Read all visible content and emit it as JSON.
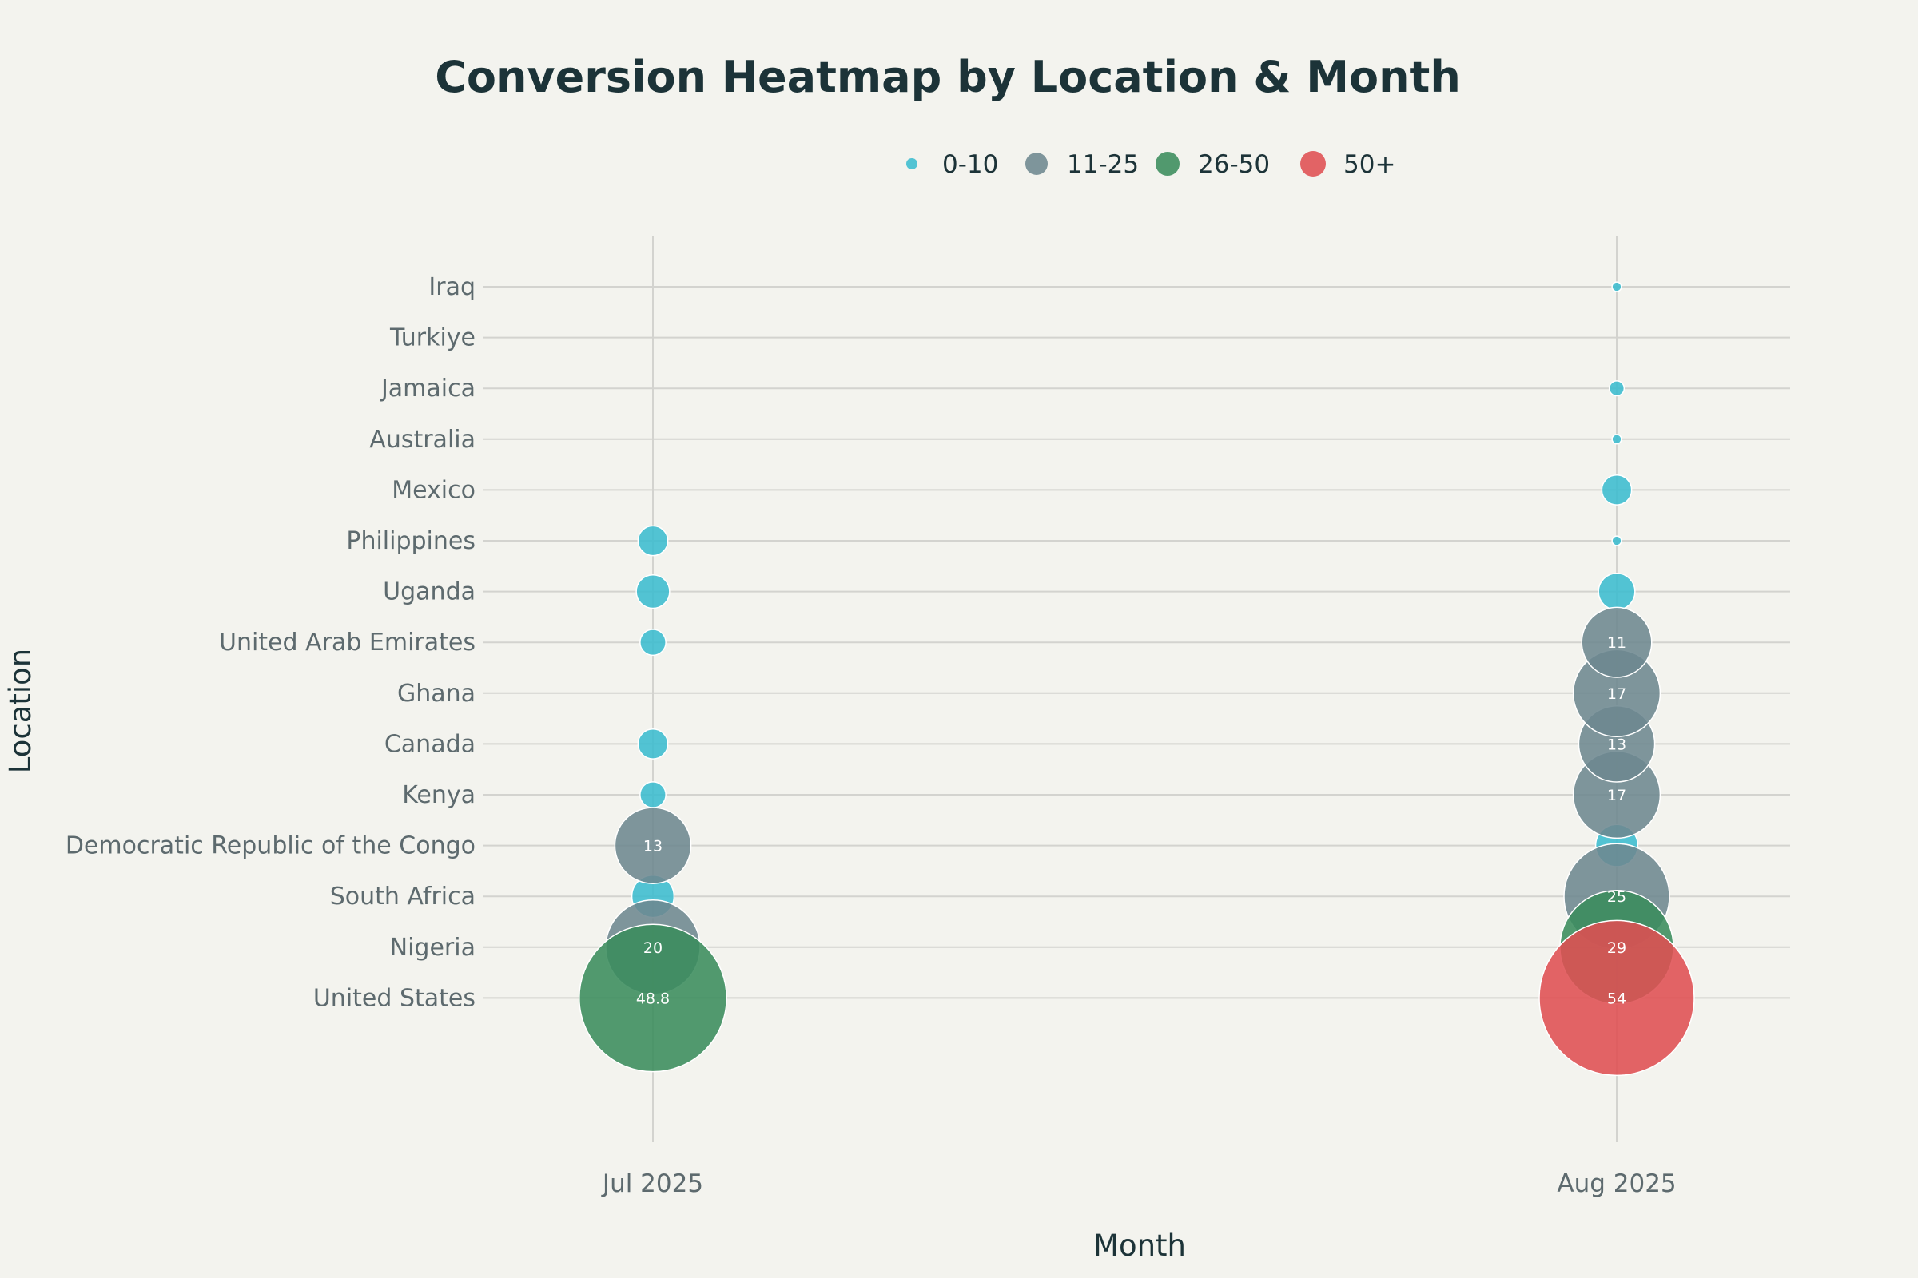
{
  "chart_data": {
    "type": "scatter",
    "title": "Conversion Heatmap by Location & Month",
    "xlabel": "Month",
    "ylabel": "Location",
    "grid": true,
    "legend_position": "top-center",
    "months": [
      "Jul 2025",
      "Aug 2025"
    ],
    "locations": [
      "United States",
      "Nigeria",
      "South Africa",
      "Democratic Republic of the Congo",
      "Kenya",
      "Canada",
      "Ghana",
      "United Arab Emirates",
      "Uganda",
      "Philippines",
      "Mexico",
      "Australia",
      "Jamaica",
      "Turkiye",
      "Iraq"
    ],
    "categories": [
      {
        "name": "0-10",
        "color": "#3bbccf"
      },
      {
        "name": "11-25",
        "color": "#6d8790"
      },
      {
        "name": "26-50",
        "color": "#3a8c5c"
      },
      {
        "name": "50+",
        "color": "#df4f52"
      }
    ],
    "points": [
      {
        "month": "Jul 2025",
        "location": "United States",
        "value": 48.8,
        "category": "26-50",
        "label": "48.8"
      },
      {
        "month": "Jul 2025",
        "location": "Nigeria",
        "value": 20,
        "category": "11-25",
        "label": "20"
      },
      {
        "month": "Jul 2025",
        "location": "South Africa",
        "value": 4,
        "category": "0-10",
        "label": ""
      },
      {
        "month": "Jul 2025",
        "location": "Democratic Republic of the Congo",
        "value": 13,
        "category": "11-25",
        "label": "13"
      },
      {
        "month": "Jul 2025",
        "location": "Kenya",
        "value": 1.5,
        "category": "0-10",
        "label": ""
      },
      {
        "month": "Jul 2025",
        "location": "Canada",
        "value": 2,
        "category": "0-10",
        "label": ""
      },
      {
        "month": "Jul 2025",
        "location": "United Arab Emirates",
        "value": 1.5,
        "category": "0-10",
        "label": ""
      },
      {
        "month": "Jul 2025",
        "location": "Uganda",
        "value": 2.5,
        "category": "0-10",
        "label": ""
      },
      {
        "month": "Jul 2025",
        "location": "Philippines",
        "value": 2,
        "category": "0-10",
        "label": ""
      },
      {
        "month": "Aug 2025",
        "location": "United States",
        "value": 54,
        "category": "50+",
        "label": "54"
      },
      {
        "month": "Aug 2025",
        "location": "Nigeria",
        "value": 29,
        "category": "26-50",
        "label": "29"
      },
      {
        "month": "Aug 2025",
        "location": "South Africa",
        "value": 25,
        "category": "11-25",
        "label": "25"
      },
      {
        "month": "Aug 2025",
        "location": "Democratic Republic of the Congo",
        "value": 4,
        "category": "0-10",
        "label": ""
      },
      {
        "month": "Aug 2025",
        "location": "Kenya",
        "value": 17,
        "category": "11-25",
        "label": "17"
      },
      {
        "month": "Aug 2025",
        "location": "Canada",
        "value": 13,
        "category": "11-25",
        "label": "13"
      },
      {
        "month": "Aug 2025",
        "location": "Ghana",
        "value": 17,
        "category": "11-25",
        "label": "17"
      },
      {
        "month": "Aug 2025",
        "location": "United Arab Emirates",
        "value": 11,
        "category": "11-25",
        "label": "11"
      },
      {
        "month": "Aug 2025",
        "location": "Uganda",
        "value": 3,
        "category": "0-10",
        "label": ""
      },
      {
        "month": "Aug 2025",
        "location": "Philippines",
        "value": 0.2,
        "category": "0-10",
        "label": ""
      },
      {
        "month": "Aug 2025",
        "location": "Mexico",
        "value": 2,
        "category": "0-10",
        "label": ""
      },
      {
        "month": "Aug 2025",
        "location": "Australia",
        "value": 0.2,
        "category": "0-10",
        "label": ""
      },
      {
        "month": "Aug 2025",
        "location": "Jamaica",
        "value": 0.5,
        "category": "0-10",
        "label": ""
      },
      {
        "month": "Aug 2025",
        "location": "Iraq",
        "value": 0.2,
        "category": "0-10",
        "label": ""
      }
    ]
  }
}
